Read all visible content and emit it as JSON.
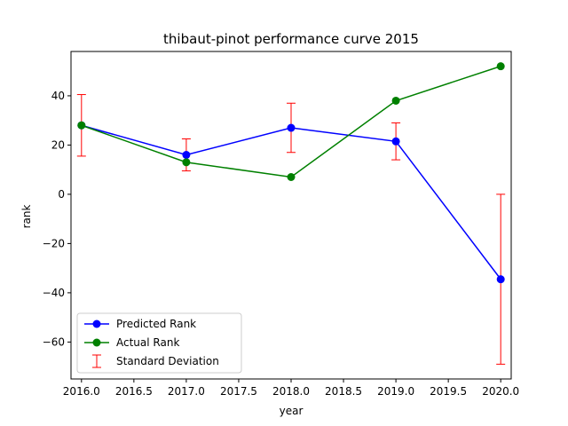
{
  "chart_data": {
    "type": "line",
    "title": "thibaut-pinot performance curve 2015",
    "xlabel": "year",
    "ylabel": "rank",
    "xlim": [
      2015.9,
      2020.1
    ],
    "ylim": [
      -75,
      58
    ],
    "xticks": [
      2016.0,
      2016.5,
      2017.0,
      2017.5,
      2018.0,
      2018.5,
      2019.0,
      2019.5,
      2020.0
    ],
    "xtick_labels": [
      "2016.0",
      "2016.5",
      "2017.0",
      "2017.5",
      "2018.0",
      "2018.5",
      "2019.0",
      "2019.5",
      "2020.0"
    ],
    "yticks": [
      -60,
      -40,
      -20,
      0,
      20,
      40
    ],
    "ytick_labels": [
      "−60",
      "−40",
      "−20",
      "0",
      "20",
      "40"
    ],
    "grid": false,
    "legend_position": "lower-left",
    "x": [
      2016,
      2017,
      2018,
      2019,
      2020
    ],
    "series": [
      {
        "name": "Predicted Rank",
        "color": "#0000ff",
        "marker": "circle",
        "values": [
          28,
          16,
          27,
          21.5,
          -34.5
        ]
      },
      {
        "name": "Actual Rank",
        "color": "#008000",
        "marker": "circle",
        "values": [
          28,
          13,
          7,
          38,
          52
        ]
      }
    ],
    "error_bars": {
      "name": "Standard Deviation",
      "color": "#ff0000",
      "center": [
        28,
        16,
        27,
        21.5,
        -34.5
      ],
      "err": [
        12.5,
        6.5,
        10,
        7.5,
        34.5
      ]
    }
  }
}
